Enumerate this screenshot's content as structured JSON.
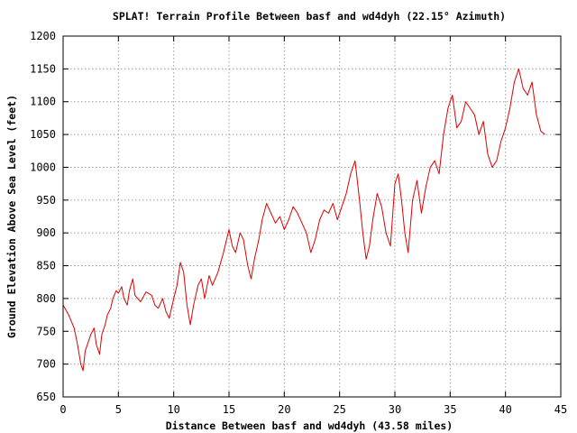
{
  "chart_data": {
    "type": "line",
    "title": "SPLAT! Terrain Profile Between basf and wd4dyh (22.15° Azimuth)",
    "xlabel": "Distance Between basf and wd4dyh (43.58 miles)",
    "ylabel": "Ground Elevation Above Sea Level (feet)",
    "xlim": [
      0,
      45
    ],
    "ylim": [
      650,
      1200
    ],
    "xticks": [
      "0",
      "5",
      "10",
      "15",
      "20",
      "25",
      "30",
      "35",
      "40",
      "45"
    ],
    "yticks": [
      "650",
      "700",
      "750",
      "800",
      "850",
      "900",
      "950",
      "1000",
      "1050",
      "1100",
      "1150",
      "1200"
    ],
    "grid": true,
    "legend": "none",
    "color": "#e00000",
    "series": [
      {
        "x": [
          0,
          0.5,
          1.0,
          1.3,
          1.6,
          1.8,
          2.0,
          2.3,
          2.5,
          2.8,
          3.0,
          3.3,
          3.5,
          3.8,
          4.0,
          4.3,
          4.5,
          4.8,
          5.0,
          5.3,
          5.5,
          5.8,
          6.0,
          6.3,
          6.5,
          7.0,
          7.5,
          8.0,
          8.3,
          8.6,
          9.0,
          9.3,
          9.6,
          10.0,
          10.3,
          10.6,
          10.9,
          11.2,
          11.5,
          11.8,
          12.2,
          12.5,
          12.8,
          13.2,
          13.5,
          14.0,
          14.5,
          15.0,
          15.3,
          15.6,
          16.0,
          16.3,
          16.7,
          17.0,
          17.3,
          17.7,
          18.0,
          18.4,
          18.8,
          19.2,
          19.6,
          20.0,
          20.4,
          20.8,
          21.2,
          21.6,
          22.0,
          22.4,
          22.8,
          23.2,
          23.6,
          24.0,
          24.4,
          24.8,
          25.2,
          25.6,
          26.0,
          26.4,
          26.8,
          27.1,
          27.4,
          27.7,
          28.0,
          28.4,
          28.8,
          29.2,
          29.6,
          30.0,
          30.3,
          30.6,
          30.9,
          31.2,
          31.6,
          32.0,
          32.4,
          32.8,
          33.2,
          33.6,
          34.0,
          34.4,
          34.8,
          35.2,
          35.6,
          36.0,
          36.4,
          36.8,
          37.2,
          37.6,
          38.0,
          38.4,
          38.8,
          39.2,
          39.6,
          40.0,
          40.4,
          40.8,
          41.2,
          41.6,
          42.0,
          42.4,
          42.8,
          43.2,
          43.58
        ],
        "y": [
          790,
          775,
          755,
          730,
          700,
          690,
          720,
          735,
          745,
          755,
          730,
          715,
          745,
          760,
          775,
          785,
          800,
          812,
          808,
          818,
          800,
          790,
          812,
          830,
          805,
          795,
          810,
          805,
          790,
          785,
          800,
          780,
          770,
          800,
          820,
          855,
          840,
          790,
          760,
          790,
          820,
          830,
          800,
          835,
          820,
          840,
          870,
          905,
          880,
          870,
          900,
          890,
          850,
          830,
          860,
          890,
          920,
          945,
          930,
          915,
          925,
          905,
          920,
          940,
          930,
          915,
          900,
          870,
          890,
          920,
          935,
          930,
          945,
          920,
          940,
          960,
          990,
          1010,
          950,
          900,
          860,
          880,
          920,
          960,
          940,
          900,
          880,
          975,
          990,
          950,
          900,
          870,
          950,
          980,
          930,
          970,
          1000,
          1010,
          990,
          1050,
          1090,
          1110,
          1060,
          1070,
          1100,
          1090,
          1080,
          1050,
          1070,
          1020,
          1000,
          1010,
          1040,
          1060,
          1090,
          1130,
          1150,
          1120,
          1110,
          1130,
          1080,
          1055,
          1050
        ]
      }
    ]
  }
}
